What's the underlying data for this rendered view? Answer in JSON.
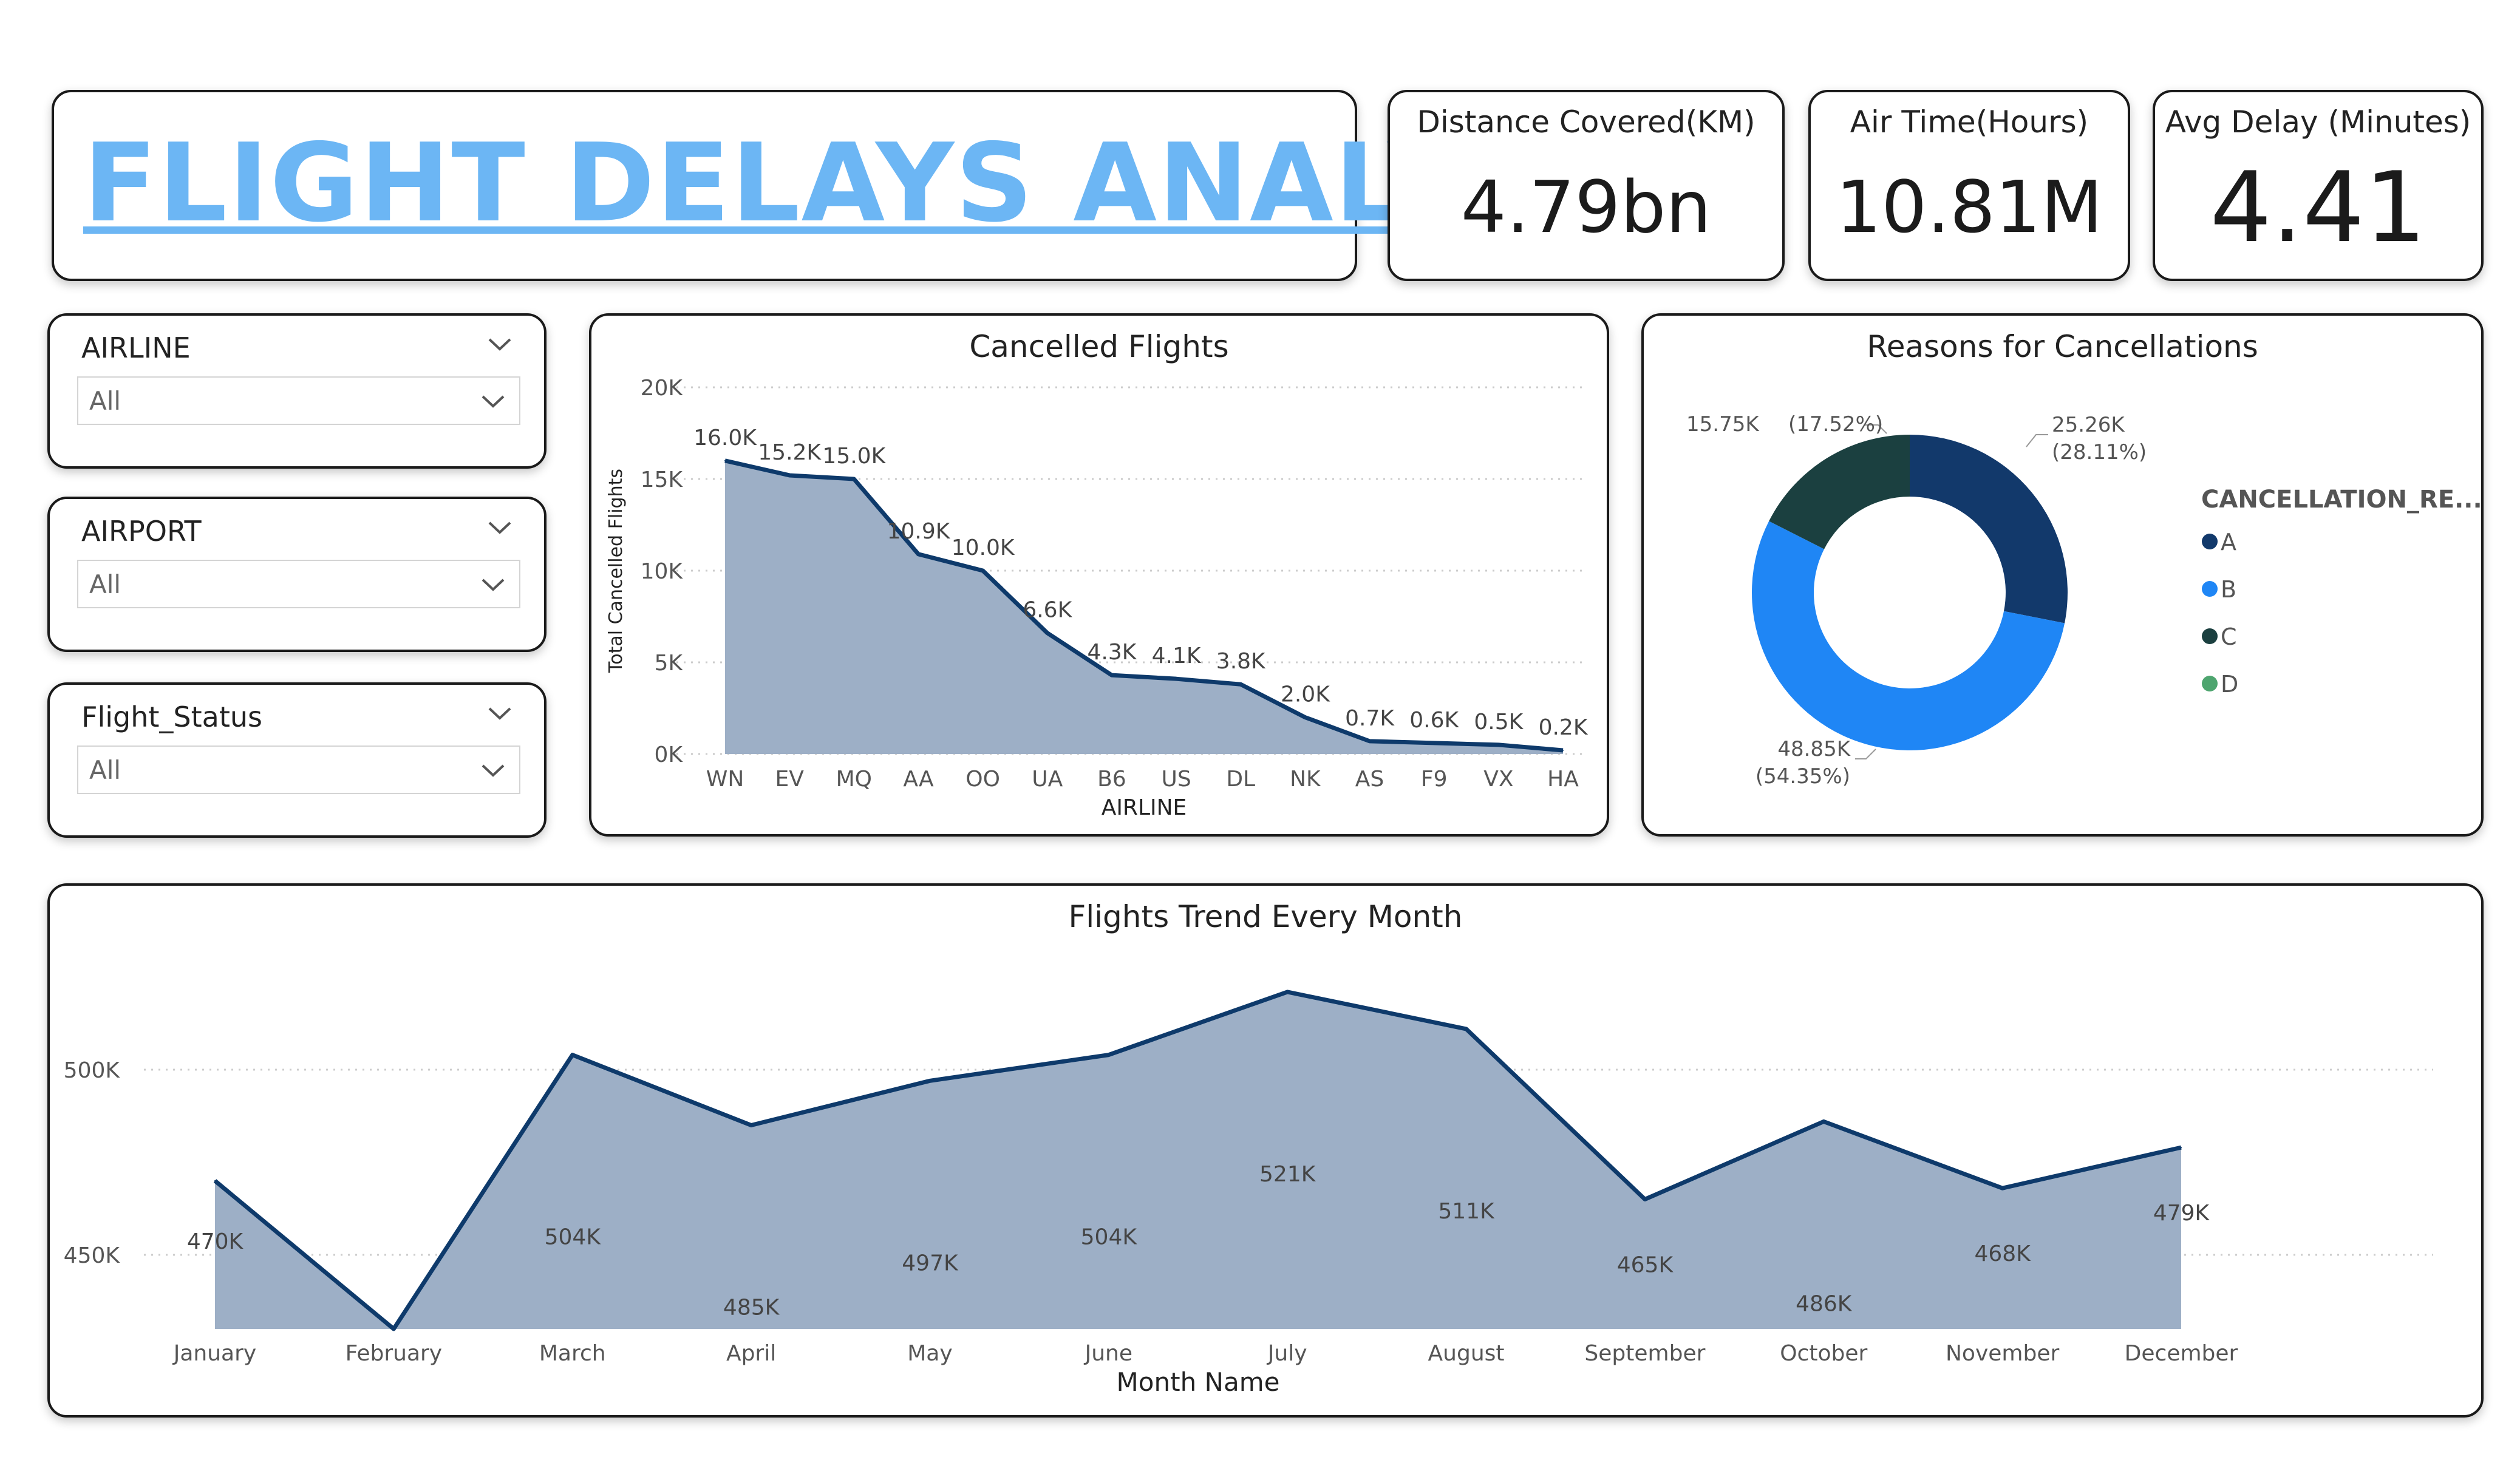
{
  "header": {
    "title": "FLIGHT DELAYS ANALYSIS"
  },
  "kpis": {
    "distance": {
      "label": "Distance Covered(KM)",
      "value": "4.79bn"
    },
    "airtime": {
      "label": "Air Time(Hours)",
      "value": "10.81M"
    },
    "avgdelay": {
      "label": "Avg Delay (Minutes)",
      "value": "4.41"
    }
  },
  "filters": {
    "airline": {
      "label": "AIRLINE",
      "value": "All"
    },
    "airport": {
      "label": "AIRPORT",
      "value": "All"
    },
    "status": {
      "label": "Flight_Status",
      "value": "All"
    }
  },
  "colors": {
    "line": "#0e3a6b",
    "area": "#9dafc6",
    "title": "#6cb6f4",
    "grid": "#cccccc"
  },
  "chart_data": [
    {
      "id": "cancelled",
      "type": "area",
      "title": "Cancelled Flights",
      "xlabel": "AIRLINE",
      "ylabel": "Total Cancelled Flights",
      "ylim": [
        0,
        20000
      ],
      "yticks": [
        0,
        5000,
        10000,
        15000,
        20000
      ],
      "ytick_labels": [
        "0K",
        "5K",
        "10K",
        "15K",
        "20K"
      ],
      "categories": [
        "WN",
        "EV",
        "MQ",
        "AA",
        "OO",
        "UA",
        "B6",
        "US",
        "DL",
        "NK",
        "AS",
        "F9",
        "VX",
        "HA"
      ],
      "values": [
        16000,
        15200,
        15000,
        10900,
        10000,
        6600,
        4300,
        4100,
        3800,
        2000,
        700,
        600,
        500,
        200
      ],
      "labels": [
        "16.0K",
        "15.2K",
        "15.0K",
        "10.9K",
        "10.0K",
        "6.6K",
        "4.3K",
        "4.1K",
        "3.8K",
        "2.0K",
        "0.7K",
        "0.6K",
        "0.5K",
        "0.2K"
      ]
    },
    {
      "id": "reasons",
      "type": "pie",
      "title": "Reasons for Cancellations",
      "legend_title": "CANCELLATION_RE...",
      "categories": [
        "A",
        "B",
        "C",
        "D"
      ],
      "values": [
        25260,
        48850,
        15750,
        0
      ],
      "colors": [
        "#12396b",
        "#1f86f5",
        "#1b4040",
        "#4ea56f"
      ],
      "labels": [
        "25.26K",
        "48.85K",
        "15.75K",
        ""
      ],
      "percents": [
        "(28.11%)",
        "(54.35%)",
        "(17.52%)",
        ""
      ]
    },
    {
      "id": "trend",
      "type": "area",
      "title": "Flights Trend Every Month",
      "xlabel": "Month Name",
      "ylabel": "",
      "ylim": [
        430000,
        530000
      ],
      "yticks": [
        450000,
        500000
      ],
      "ytick_labels": [
        "450K",
        "500K"
      ],
      "categories": [
        "January",
        "February",
        "March",
        "April",
        "May",
        "June",
        "July",
        "August",
        "September",
        "October",
        "November",
        "December"
      ],
      "values": [
        470000,
        430000,
        504000,
        485000,
        497000,
        504000,
        521000,
        511000,
        465000,
        486000,
        468000,
        479000
      ],
      "labels": [
        "470K",
        "",
        "504K",
        "485K",
        "497K",
        "504K",
        "521K",
        "511K",
        "465K",
        "486K",
        "468K",
        "479K"
      ]
    }
  ]
}
